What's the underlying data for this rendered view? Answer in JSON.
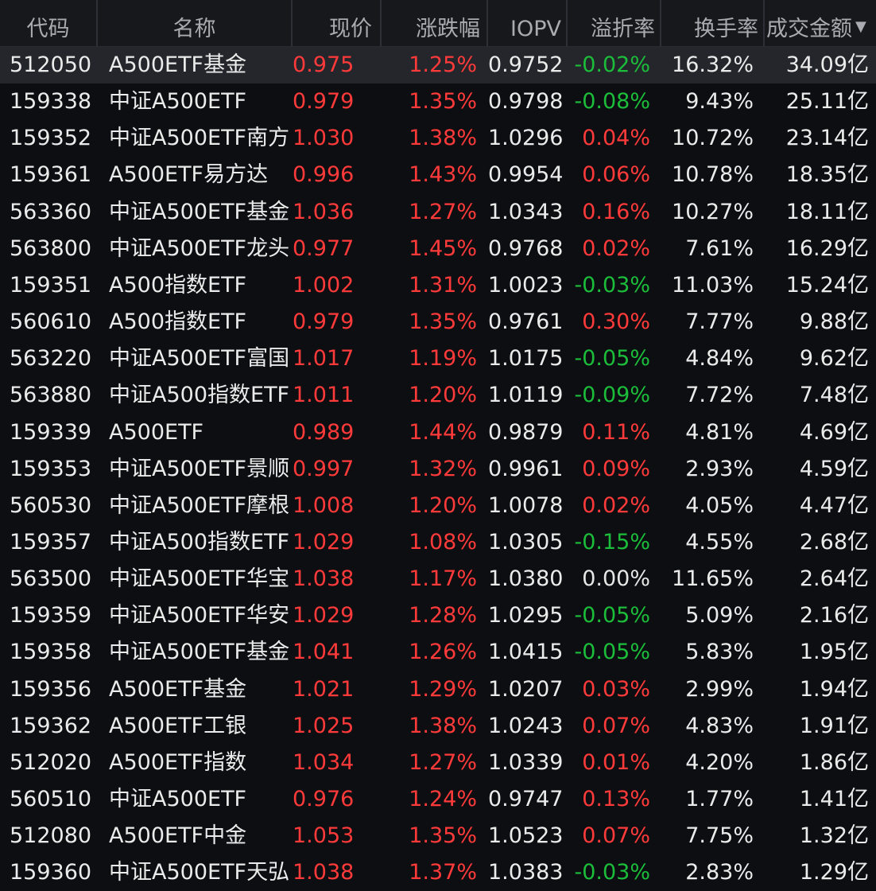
{
  "colors": {
    "up": "#ff3a3a",
    "down": "#1bbd3a",
    "neutral": "#e6e6e6",
    "header_bg": "#17181c",
    "row_selected_bg": "#25262b",
    "background": "#0d0e11"
  },
  "header": {
    "code": "代码",
    "name": "名称",
    "price": "现价",
    "change_pct": "涨跌幅",
    "iopv": "IOPV",
    "premium": "溢折率",
    "turnover": "换手率",
    "amount": "成交金额",
    "sort_icon": "sort-descending-icon"
  },
  "rows": [
    {
      "code": "512050",
      "name": "A500ETF基金",
      "price": "0.975",
      "change": "1.25%",
      "iopv": "0.9752",
      "premium": "-0.02%",
      "turnover": "16.32%",
      "amount": "34.09亿"
    },
    {
      "code": "159338",
      "name": "中证A500ETF",
      "price": "0.979",
      "change": "1.35%",
      "iopv": "0.9798",
      "premium": "-0.08%",
      "turnover": "9.43%",
      "amount": "25.11亿"
    },
    {
      "code": "159352",
      "name": "中证A500ETF南方",
      "price": "1.030",
      "change": "1.38%",
      "iopv": "1.0296",
      "premium": "0.04%",
      "turnover": "10.72%",
      "amount": "23.14亿"
    },
    {
      "code": "159361",
      "name": "A500ETF易方达",
      "price": "0.996",
      "change": "1.43%",
      "iopv": "0.9954",
      "premium": "0.06%",
      "turnover": "10.78%",
      "amount": "18.35亿"
    },
    {
      "code": "563360",
      "name": "中证A500ETF基金",
      "price": "1.036",
      "change": "1.27%",
      "iopv": "1.0343",
      "premium": "0.16%",
      "turnover": "10.27%",
      "amount": "18.11亿"
    },
    {
      "code": "563800",
      "name": "中证A500ETF龙头",
      "price": "0.977",
      "change": "1.45%",
      "iopv": "0.9768",
      "premium": "0.02%",
      "turnover": "7.61%",
      "amount": "16.29亿"
    },
    {
      "code": "159351",
      "name": "A500指数ETF",
      "price": "1.002",
      "change": "1.31%",
      "iopv": "1.0023",
      "premium": "-0.03%",
      "turnover": "11.03%",
      "amount": "15.24亿"
    },
    {
      "code": "560610",
      "name": "A500指数ETF",
      "price": "0.979",
      "change": "1.35%",
      "iopv": "0.9761",
      "premium": "0.30%",
      "turnover": "7.77%",
      "amount": "9.88亿"
    },
    {
      "code": "563220",
      "name": "中证A500ETF富国",
      "price": "1.017",
      "change": "1.19%",
      "iopv": "1.0175",
      "premium": "-0.05%",
      "turnover": "4.84%",
      "amount": "9.62亿"
    },
    {
      "code": "563880",
      "name": "中证A500指数ETF",
      "price": "1.011",
      "change": "1.20%",
      "iopv": "1.0119",
      "premium": "-0.09%",
      "turnover": "7.72%",
      "amount": "7.48亿"
    },
    {
      "code": "159339",
      "name": "A500ETF",
      "price": "0.989",
      "change": "1.44%",
      "iopv": "0.9879",
      "premium": "0.11%",
      "turnover": "4.81%",
      "amount": "4.69亿"
    },
    {
      "code": "159353",
      "name": "中证A500ETF景顺",
      "price": "0.997",
      "change": "1.32%",
      "iopv": "0.9961",
      "premium": "0.09%",
      "turnover": "2.93%",
      "amount": "4.59亿"
    },
    {
      "code": "560530",
      "name": "中证A500ETF摩根",
      "price": "1.008",
      "change": "1.20%",
      "iopv": "1.0078",
      "premium": "0.02%",
      "turnover": "4.05%",
      "amount": "4.47亿"
    },
    {
      "code": "159357",
      "name": "中证A500指数ETF",
      "price": "1.029",
      "change": "1.08%",
      "iopv": "1.0305",
      "premium": "-0.15%",
      "turnover": "4.55%",
      "amount": "2.68亿"
    },
    {
      "code": "563500",
      "name": "中证A500ETF华宝",
      "price": "1.038",
      "change": "1.17%",
      "iopv": "1.0380",
      "premium": "0.00%",
      "turnover": "11.65%",
      "amount": "2.64亿"
    },
    {
      "code": "159359",
      "name": "中证A500ETF华安",
      "price": "1.029",
      "change": "1.28%",
      "iopv": "1.0295",
      "premium": "-0.05%",
      "turnover": "5.09%",
      "amount": "2.16亿"
    },
    {
      "code": "159358",
      "name": "中证A500ETF基金",
      "price": "1.041",
      "change": "1.26%",
      "iopv": "1.0415",
      "premium": "-0.05%",
      "turnover": "5.83%",
      "amount": "1.95亿"
    },
    {
      "code": "159356",
      "name": "A500ETF基金",
      "price": "1.021",
      "change": "1.29%",
      "iopv": "1.0207",
      "premium": "0.03%",
      "turnover": "2.99%",
      "amount": "1.94亿"
    },
    {
      "code": "159362",
      "name": "A500ETF工银",
      "price": "1.025",
      "change": "1.38%",
      "iopv": "1.0243",
      "premium": "0.07%",
      "turnover": "4.83%",
      "amount": "1.91亿"
    },
    {
      "code": "512020",
      "name": "A500ETF指数",
      "price": "1.034",
      "change": "1.27%",
      "iopv": "1.0339",
      "premium": "0.01%",
      "turnover": "4.20%",
      "amount": "1.86亿"
    },
    {
      "code": "560510",
      "name": "中证A500ETF",
      "price": "0.976",
      "change": "1.24%",
      "iopv": "0.9747",
      "premium": "0.13%",
      "turnover": "1.77%",
      "amount": "1.41亿"
    },
    {
      "code": "512080",
      "name": "A500ETF中金",
      "price": "1.053",
      "change": "1.35%",
      "iopv": "1.0523",
      "premium": "0.07%",
      "turnover": "7.75%",
      "amount": "1.32亿"
    },
    {
      "code": "159360",
      "name": "中证A500ETF天弘",
      "price": "1.038",
      "change": "1.37%",
      "iopv": "1.0383",
      "premium": "-0.03%",
      "turnover": "2.83%",
      "amount": "1.29亿"
    }
  ]
}
